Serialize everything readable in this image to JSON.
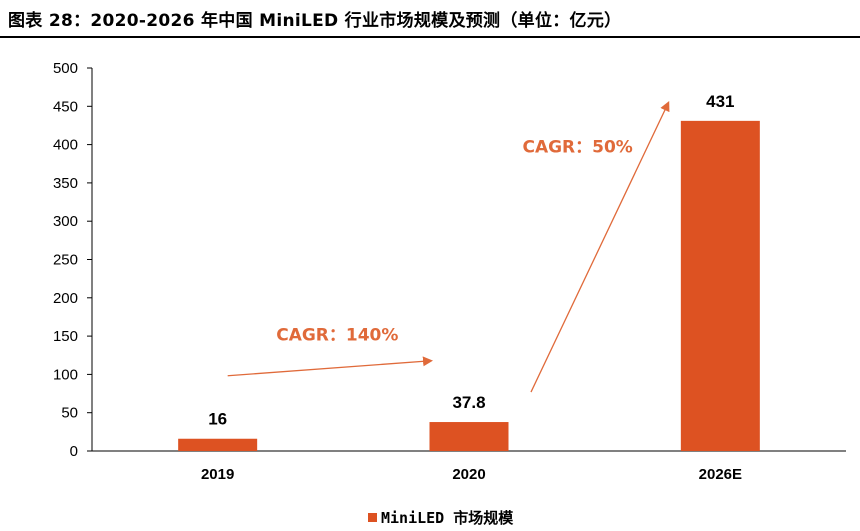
{
  "chart_data": {
    "type": "bar",
    "title": "图表 28：2020-2026 年中国 MiniLED 行业市场规模及预测（单位：亿元）",
    "categories": [
      "2019",
      "2020",
      "2026E"
    ],
    "series": [
      {
        "name": "MiniLED 市场规模",
        "values": [
          16,
          37.8,
          431
        ],
        "labels": [
          "16",
          "37.8",
          "431"
        ]
      }
    ],
    "ylim": [
      0,
      500
    ],
    "yticks": [
      0,
      50,
      100,
      150,
      200,
      250,
      300,
      350,
      400,
      450,
      500
    ],
    "xlabel": "",
    "ylabel": "",
    "grid": false,
    "legend_position": "bottom-center",
    "annotations": [
      {
        "text": "CAGR：140%",
        "from": "2019",
        "to": "2020"
      },
      {
        "text": "CAGR：50%",
        "from": "2020",
        "to": "2026E"
      }
    ]
  },
  "colors": {
    "bar": "#DD5222",
    "annotation": "#E06A3A",
    "axis": "#000000"
  }
}
